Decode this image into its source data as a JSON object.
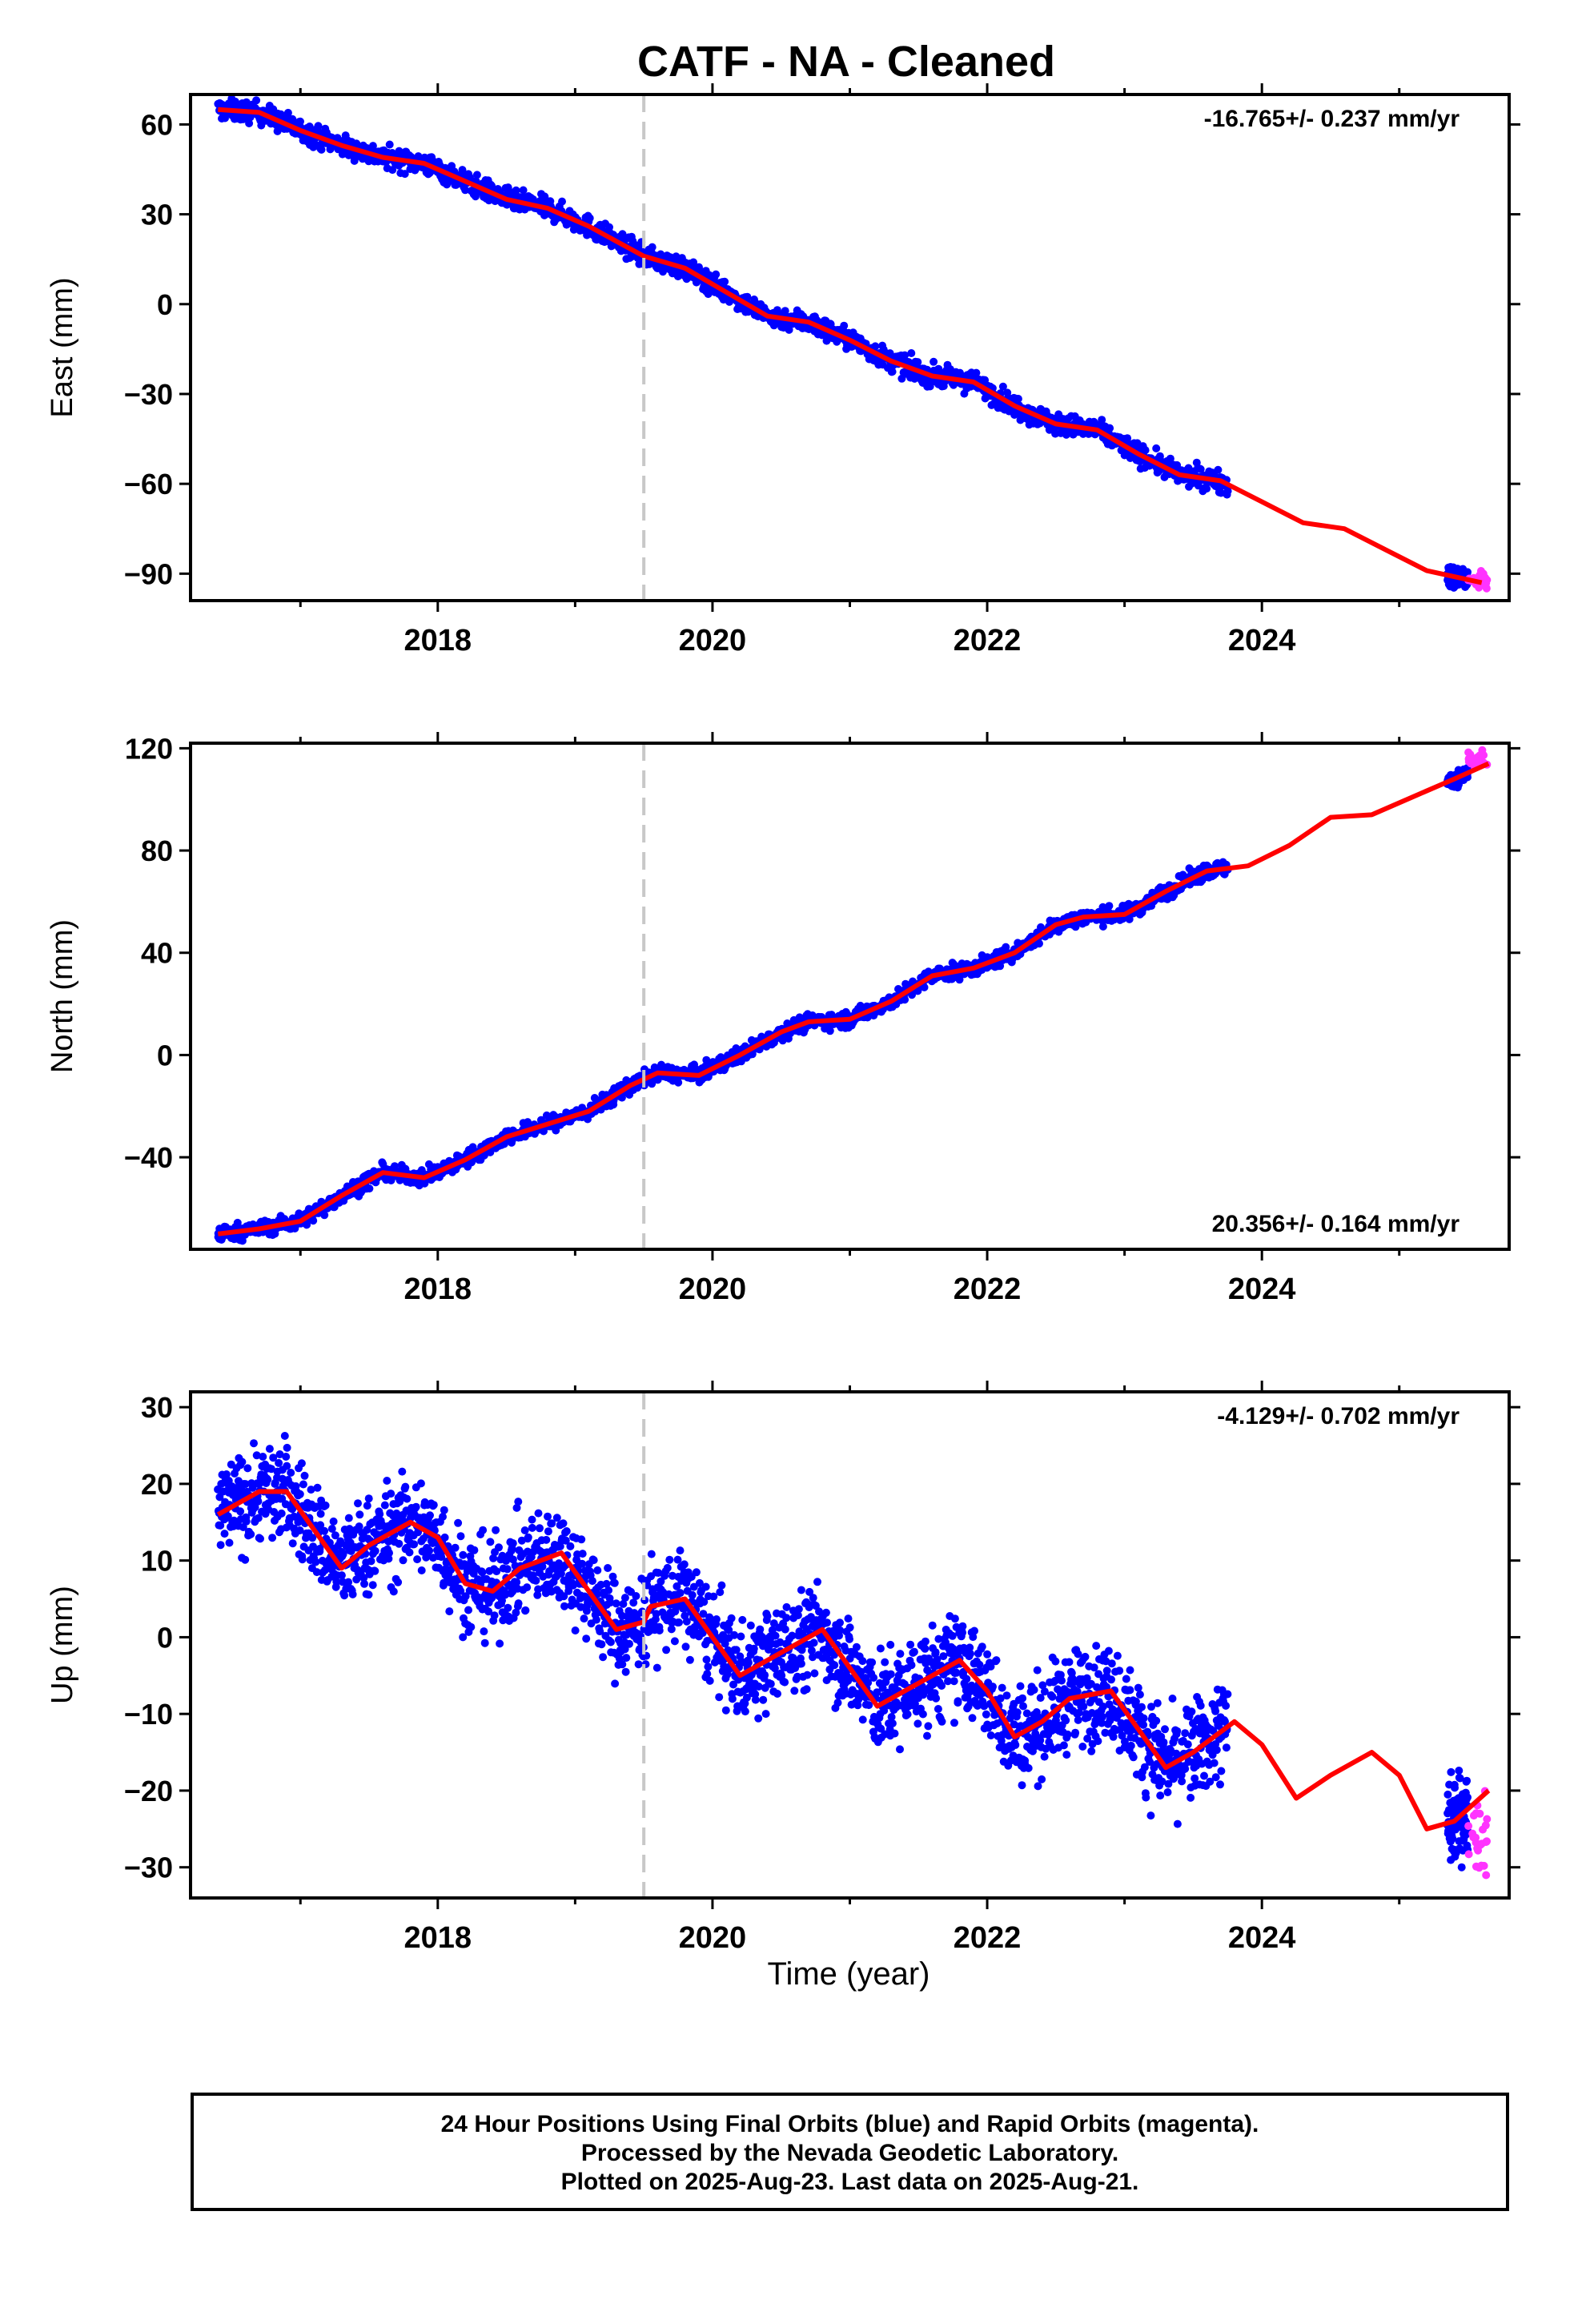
{
  "chart_data": {
    "title": "CATF  - NA - Cleaned",
    "type": "scatter",
    "x_range": [
      2016.2,
      2025.8
    ],
    "x_ticks": [
      2018,
      2020,
      2022,
      2024
    ],
    "xlabel": "Time (year)",
    "event_line_x": 2019.5,
    "colors": {
      "final": "#0000ff",
      "rapid": "#ff33ff",
      "fit": "#ff0000",
      "event_line": "#c8c8c8"
    },
    "panels": [
      {
        "ylabel": "East (mm)",
        "ylim": [
          -99,
          70
        ],
        "y_ticks": [
          60,
          30,
          0,
          -30,
          -60,
          -90
        ],
        "rate_label": "-16.765+/- 0.237 mm/yr",
        "rate_position": "top-right",
        "fit_curve": [
          [
            2016.4,
            65
          ],
          [
            2016.7,
            64
          ],
          [
            2017.0,
            58
          ],
          [
            2017.3,
            53
          ],
          [
            2017.6,
            49
          ],
          [
            2017.9,
            47
          ],
          [
            2018.2,
            41
          ],
          [
            2018.5,
            35
          ],
          [
            2018.8,
            32
          ],
          [
            2019.1,
            26
          ],
          [
            2019.3,
            21
          ],
          [
            2019.5,
            16
          ],
          [
            2019.8,
            12
          ],
          [
            2020.1,
            4
          ],
          [
            2020.4,
            -4
          ],
          [
            2020.7,
            -6
          ],
          [
            2021.0,
            -12
          ],
          [
            2021.3,
            -19
          ],
          [
            2021.6,
            -24
          ],
          [
            2021.9,
            -26
          ],
          [
            2022.2,
            -34
          ],
          [
            2022.5,
            -40
          ],
          [
            2022.8,
            -42
          ],
          [
            2023.1,
            -50
          ],
          [
            2023.4,
            -57
          ],
          [
            2023.7,
            -59
          ],
          [
            2024.0,
            -66
          ],
          [
            2024.3,
            -73
          ],
          [
            2024.6,
            -75
          ],
          [
            2024.9,
            -82
          ],
          [
            2025.2,
            -89
          ],
          [
            2025.6,
            -93
          ]
        ],
        "scatter_spread": 2.5,
        "rapid": {
          "x_range": [
            2025.5,
            2025.64
          ],
          "y_center": -92,
          "spread": 2.5
        }
      },
      {
        "ylabel": "North (mm)",
        "ylim": [
          -76,
          122
        ],
        "y_ticks": [
          120,
          80,
          40,
          0,
          -40
        ],
        "rate_label": "20.356+/- 0.164 mm/yr",
        "rate_position": "bottom-right",
        "fit_curve": [
          [
            2016.4,
            -70
          ],
          [
            2016.7,
            -68
          ],
          [
            2017.0,
            -65
          ],
          [
            2017.3,
            -55
          ],
          [
            2017.6,
            -46
          ],
          [
            2017.9,
            -48
          ],
          [
            2018.2,
            -41
          ],
          [
            2018.5,
            -32
          ],
          [
            2018.8,
            -27
          ],
          [
            2019.1,
            -22
          ],
          [
            2019.4,
            -12
          ],
          [
            2019.6,
            -7
          ],
          [
            2019.9,
            -8
          ],
          [
            2020.2,
            0
          ],
          [
            2020.5,
            9
          ],
          [
            2020.7,
            13
          ],
          [
            2021.0,
            14
          ],
          [
            2021.3,
            21
          ],
          [
            2021.6,
            31
          ],
          [
            2021.9,
            34
          ],
          [
            2022.2,
            40
          ],
          [
            2022.5,
            51
          ],
          [
            2022.7,
            54
          ],
          [
            2023.0,
            55
          ],
          [
            2023.3,
            64
          ],
          [
            2023.6,
            72
          ],
          [
            2023.9,
            74
          ],
          [
            2024.2,
            82
          ],
          [
            2024.5,
            93
          ],
          [
            2024.8,
            94
          ],
          [
            2025.1,
            101
          ],
          [
            2025.4,
            108
          ],
          [
            2025.65,
            114
          ]
        ],
        "scatter_spread": 2.2,
        "rapid": {
          "x_range": [
            2025.5,
            2025.64
          ],
          "y_center": 115,
          "spread": 2
        }
      },
      {
        "ylabel": "Up (mm)",
        "ylim": [
          -34,
          32
        ],
        "y_ticks": [
          30,
          20,
          10,
          0,
          -10,
          -20,
          -30
        ],
        "rate_label": "-4.129+/- 0.702 mm/yr",
        "rate_position": "top-right",
        "fit_curve": [
          [
            2016.4,
            16
          ],
          [
            2016.7,
            19
          ],
          [
            2016.9,
            19
          ],
          [
            2017.1,
            14
          ],
          [
            2017.3,
            9
          ],
          [
            2017.5,
            12
          ],
          [
            2017.8,
            15
          ],
          [
            2018.0,
            13
          ],
          [
            2018.2,
            7
          ],
          [
            2018.4,
            6
          ],
          [
            2018.6,
            9
          ],
          [
            2018.9,
            11
          ],
          [
            2019.1,
            6
          ],
          [
            2019.3,
            1
          ],
          [
            2019.5,
            2
          ],
          [
            2019.55,
            4
          ],
          [
            2019.8,
            5
          ],
          [
            2020.0,
            0
          ],
          [
            2020.2,
            -5
          ],
          [
            2020.5,
            -2
          ],
          [
            2020.8,
            1
          ],
          [
            2021.0,
            -4
          ],
          [
            2021.2,
            -9
          ],
          [
            2021.5,
            -6
          ],
          [
            2021.8,
            -3
          ],
          [
            2022.0,
            -7
          ],
          [
            2022.2,
            -13
          ],
          [
            2022.4,
            -11
          ],
          [
            2022.6,
            -8
          ],
          [
            2022.9,
            -7
          ],
          [
            2023.1,
            -12
          ],
          [
            2023.3,
            -17
          ],
          [
            2023.5,
            -15
          ],
          [
            2023.8,
            -11
          ],
          [
            2024.0,
            -14
          ],
          [
            2024.25,
            -21
          ],
          [
            2024.5,
            -18
          ],
          [
            2024.8,
            -15
          ],
          [
            2025.0,
            -18
          ],
          [
            2025.2,
            -25
          ],
          [
            2025.4,
            -24
          ],
          [
            2025.65,
            -20
          ]
        ],
        "scatter_spread": 4.5,
        "rapid": {
          "x_range": [
            2025.5,
            2025.64
          ],
          "y_center": -25,
          "spread": 4
        }
      }
    ],
    "data_gap": [
      2023.75,
      2025.35
    ]
  },
  "caption": {
    "line1": "24 Hour Positions Using Final Orbits (blue) and Rapid Orbits (magenta).",
    "line2": "Processed by the Nevada Geodetic Laboratory.",
    "line3": "Plotted on 2025-Aug-23. Last data on 2025-Aug-21."
  }
}
